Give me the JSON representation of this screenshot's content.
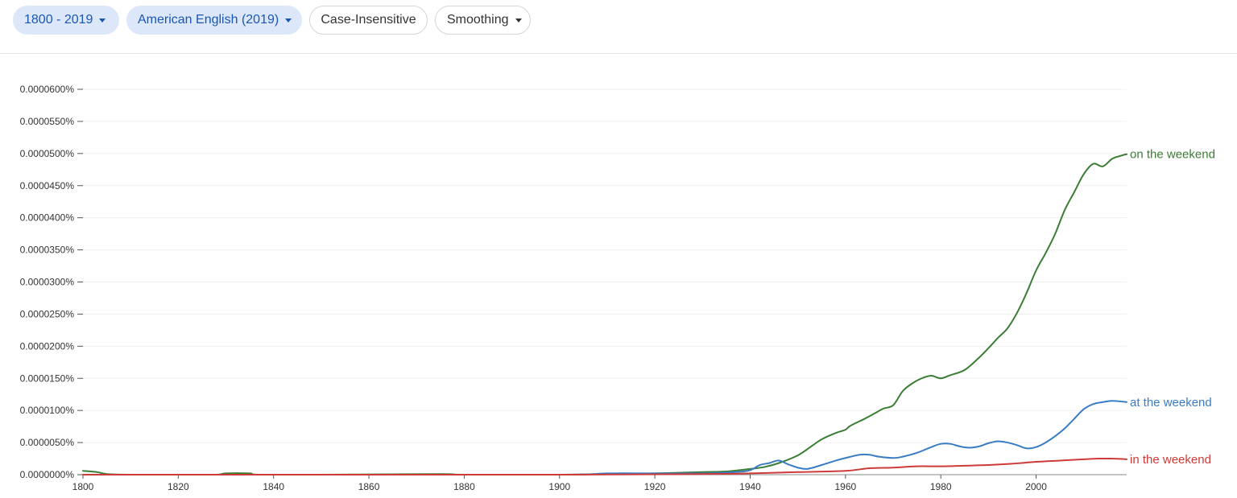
{
  "toolbar": {
    "date_range": "1800 - 2019",
    "corpus": "American English (2019)",
    "case": "Case-Insensitive",
    "smoothing": "Smoothing"
  },
  "colors": {
    "chip_fill": "#dce8fa",
    "chip_text": "#1a56b4"
  },
  "icons": {
    "dropdown": "caret-down-icon"
  },
  "chart_data": {
    "type": "line",
    "title": "",
    "xlabel": "",
    "ylabel": "",
    "xlim": [
      1800,
      2019
    ],
    "ylim": [
      0,
      6e-05
    ],
    "y_unit": "%",
    "grid": true,
    "legend": "inline labels at line ends (right)",
    "xticks": [
      "1800",
      "1820",
      "1840",
      "1860",
      "1880",
      "1900",
      "1920",
      "1940",
      "1960",
      "1980",
      "2000"
    ],
    "xtick_values": [
      1800,
      1820,
      1840,
      1860,
      1880,
      1900,
      1920,
      1940,
      1960,
      1980,
      2000
    ],
    "yticks": [
      "0.0000000%",
      "0.0000050%",
      "0.0000100%",
      "0.0000150%",
      "0.0000200%",
      "0.0000250%",
      "0.0000300%",
      "0.0000350%",
      "0.0000400%",
      "0.0000450%",
      "0.0000500%",
      "0.0000550%",
      "0.0000600%"
    ],
    "ytick_values": [
      0,
      5e-06,
      1e-05,
      1.5e-05,
      2e-05,
      2.5e-05,
      3e-05,
      3.5e-05,
      4e-05,
      4.5e-05,
      5e-05,
      5.5e-05,
      6e-05
    ],
    "series": [
      {
        "name": "on the weekend",
        "color": "#3b7d35",
        "points": [
          [
            1800,
            6e-07
          ],
          [
            1803,
            4e-07
          ],
          [
            1805,
            1e-07
          ],
          [
            1810,
            0.0
          ],
          [
            1820,
            0.0
          ],
          [
            1828,
            0.0
          ],
          [
            1830,
            2e-07
          ],
          [
            1835,
            2e-07
          ],
          [
            1837,
            0.0
          ],
          [
            1850,
            0.0
          ],
          [
            1875,
            1e-07
          ],
          [
            1880,
            0.0
          ],
          [
            1900,
            0.0
          ],
          [
            1910,
            1e-07
          ],
          [
            1920,
            2e-07
          ],
          [
            1930,
            4e-07
          ],
          [
            1935,
            5e-07
          ],
          [
            1940,
            9e-07
          ],
          [
            1943,
            1.2e-06
          ],
          [
            1946,
            1.8e-06
          ],
          [
            1950,
            3e-06
          ],
          [
            1953,
            4.5e-06
          ],
          [
            1955,
            5.5e-06
          ],
          [
            1958,
            6.5e-06
          ],
          [
            1960,
            7e-06
          ],
          [
            1961,
            7.6e-06
          ],
          [
            1964,
            8.7e-06
          ],
          [
            1966,
            9.5e-06
          ],
          [
            1968,
            1.03e-05
          ],
          [
            1970,
            1.08e-05
          ],
          [
            1972,
            1.3e-05
          ],
          [
            1974,
            1.42e-05
          ],
          [
            1976,
            1.5e-05
          ],
          [
            1978,
            1.54e-05
          ],
          [
            1980,
            1.5e-05
          ],
          [
            1982,
            1.55e-05
          ],
          [
            1985,
            1.63e-05
          ],
          [
            1988,
            1.82e-05
          ],
          [
            1990,
            1.97e-05
          ],
          [
            1992,
            2.13e-05
          ],
          [
            1994,
            2.28e-05
          ],
          [
            1996,
            2.52e-05
          ],
          [
            1998,
            2.83e-05
          ],
          [
            2000,
            3.18e-05
          ],
          [
            2002,
            3.45e-05
          ],
          [
            2004,
            3.75e-05
          ],
          [
            2006,
            4.12e-05
          ],
          [
            2008,
            4.4e-05
          ],
          [
            2010,
            4.68e-05
          ],
          [
            2012,
            4.84e-05
          ],
          [
            2014,
            4.8e-05
          ],
          [
            2016,
            4.92e-05
          ],
          [
            2018,
            4.97e-05
          ],
          [
            2019,
            4.99e-05
          ]
        ]
      },
      {
        "name": "at the weekend",
        "color": "#3a7cc4",
        "points": [
          [
            1800,
            0.0
          ],
          [
            1850,
            0.0
          ],
          [
            1900,
            0.0
          ],
          [
            1910,
            2e-07
          ],
          [
            1920,
            2e-07
          ],
          [
            1930,
            2e-07
          ],
          [
            1937,
            4e-07
          ],
          [
            1940,
            7e-07
          ],
          [
            1942,
            1.5e-06
          ],
          [
            1944,
            1.8e-06
          ],
          [
            1946,
            2.2e-06
          ],
          [
            1948,
            1.6e-06
          ],
          [
            1950,
            1.1e-06
          ],
          [
            1952,
            9e-07
          ],
          [
            1955,
            1.5e-06
          ],
          [
            1958,
            2.2e-06
          ],
          [
            1960,
            2.6e-06
          ],
          [
            1963,
            3.1e-06
          ],
          [
            1965,
            3.1e-06
          ],
          [
            1967,
            2.8e-06
          ],
          [
            1970,
            2.6e-06
          ],
          [
            1972,
            2.8e-06
          ],
          [
            1975,
            3.4e-06
          ],
          [
            1978,
            4.3e-06
          ],
          [
            1980,
            4.8e-06
          ],
          [
            1982,
            4.8e-06
          ],
          [
            1984,
            4.4e-06
          ],
          [
            1986,
            4.2e-06
          ],
          [
            1988,
            4.4e-06
          ],
          [
            1990,
            4.9e-06
          ],
          [
            1992,
            5.2e-06
          ],
          [
            1994,
            5e-06
          ],
          [
            1996,
            4.6e-06
          ],
          [
            1998,
            4.1e-06
          ],
          [
            2000,
            4.3e-06
          ],
          [
            2002,
            5e-06
          ],
          [
            2004,
            6e-06
          ],
          [
            2006,
            7.2e-06
          ],
          [
            2008,
            8.7e-06
          ],
          [
            2010,
            1.02e-05
          ],
          [
            2012,
            1.1e-05
          ],
          [
            2014,
            1.13e-05
          ],
          [
            2016,
            1.15e-05
          ],
          [
            2019,
            1.13e-05
          ]
        ]
      },
      {
        "name": "in the weekend",
        "color": "#cc3b38",
        "points": [
          [
            1800,
            0.0
          ],
          [
            1900,
            0.0
          ],
          [
            1930,
            1e-07
          ],
          [
            1940,
            2e-07
          ],
          [
            1950,
            4e-07
          ],
          [
            1960,
            6e-07
          ],
          [
            1965,
            1e-06
          ],
          [
            1970,
            1.1e-06
          ],
          [
            1975,
            1.3e-06
          ],
          [
            1980,
            1.3e-06
          ],
          [
            1985,
            1.4e-06
          ],
          [
            1990,
            1.5e-06
          ],
          [
            1995,
            1.7e-06
          ],
          [
            2000,
            2e-06
          ],
          [
            2005,
            2.2e-06
          ],
          [
            2010,
            2.4e-06
          ],
          [
            2013,
            2.5e-06
          ],
          [
            2016,
            2.5e-06
          ],
          [
            2019,
            2.4e-06
          ]
        ]
      }
    ]
  }
}
